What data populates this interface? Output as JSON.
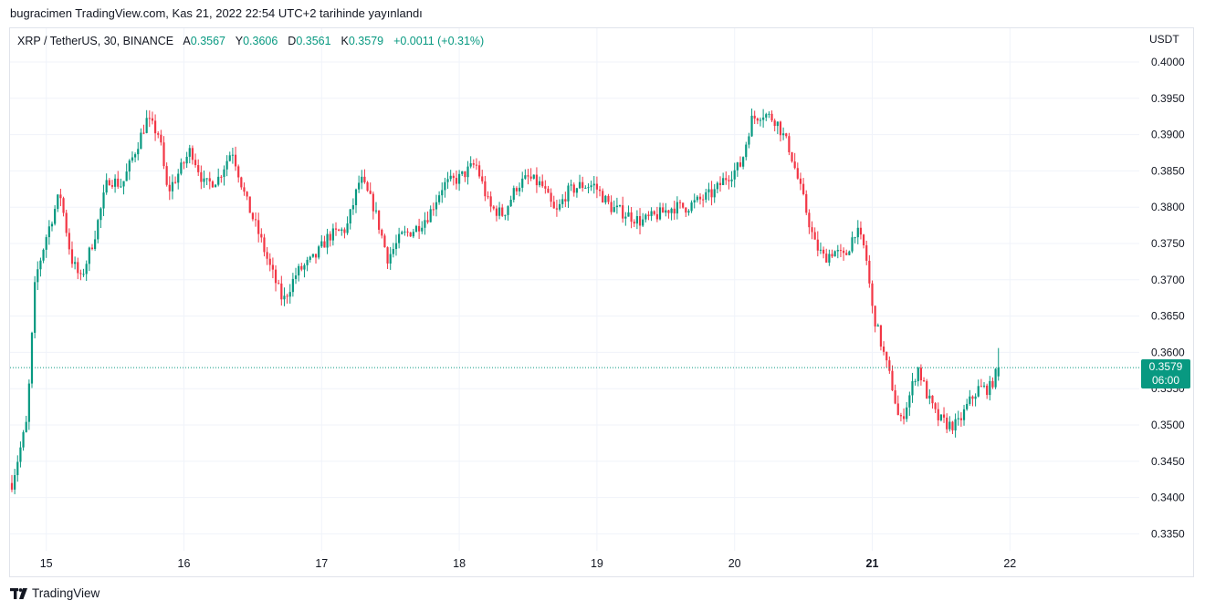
{
  "published_line": "bugracimen TradingView.com, Kas 21, 2022 22:54 UTC+2 tarihinde yayınlandı",
  "legend": {
    "symbol": "XRP / TetherUS, 30, BINANCE",
    "open_label": "A",
    "open_value": "0.3567",
    "high_label": "Y",
    "high_value": "0.3606",
    "low_label": "D",
    "low_value": "0.3561",
    "close_label": "K",
    "close_value": "0.3579",
    "change": "+0.0011 (+0.31%)"
  },
  "currency": "USDT",
  "price_badge": {
    "price": "0.3579",
    "countdown": "06:00"
  },
  "footer": {
    "brand": "TradingView"
  },
  "colors": {
    "up": "#089981",
    "down": "#f23645",
    "grid": "#f0f3fa",
    "axis_text": "#131722"
  },
  "chart_data": {
    "type": "candlestick",
    "title": "XRP / TetherUS, 30, BINANCE",
    "ylabel": "USDT",
    "ylim": [
      0.3308,
      0.4042
    ],
    "y_ticks": [
      "0.4000",
      "0.3950",
      "0.3900",
      "0.3850",
      "0.3800",
      "0.3750",
      "0.3700",
      "0.3650",
      "0.3600",
      "0.3550",
      "0.3500",
      "0.3450",
      "0.3400",
      "0.3350"
    ],
    "x_ticks": [
      "15",
      "16",
      "17",
      "18",
      "19",
      "20",
      "21",
      "22"
    ],
    "bold_x_tick": "21",
    "last_price": 0.3579,
    "series": [
      {
        "name": "XRP / TetherUS",
        "interval": "30",
        "day_of_first_bar": 14.75,
        "bars_per_day": 48,
        "close_path_keypoints": [
          [
            14.75,
            0.342
          ],
          [
            14.86,
            0.3505
          ],
          [
            14.92,
            0.37
          ],
          [
            15.0,
            0.376
          ],
          [
            15.1,
            0.382
          ],
          [
            15.18,
            0.373
          ],
          [
            15.25,
            0.37
          ],
          [
            15.35,
            0.376
          ],
          [
            15.45,
            0.384
          ],
          [
            15.55,
            0.383
          ],
          [
            15.65,
            0.388
          ],
          [
            15.73,
            0.392
          ],
          [
            15.82,
            0.39
          ],
          [
            15.88,
            0.382
          ],
          [
            15.97,
            0.385
          ],
          [
            16.05,
            0.388
          ],
          [
            16.15,
            0.383
          ],
          [
            16.25,
            0.384
          ],
          [
            16.35,
            0.388
          ],
          [
            16.45,
            0.381
          ],
          [
            16.55,
            0.376
          ],
          [
            16.62,
            0.372
          ],
          [
            16.72,
            0.367
          ],
          [
            16.82,
            0.371
          ],
          [
            16.95,
            0.373
          ],
          [
            17.05,
            0.376
          ],
          [
            17.18,
            0.377
          ],
          [
            17.28,
            0.384
          ],
          [
            17.38,
            0.38
          ],
          [
            17.48,
            0.373
          ],
          [
            17.58,
            0.376
          ],
          [
            17.68,
            0.377
          ],
          [
            17.78,
            0.379
          ],
          [
            17.88,
            0.383
          ],
          [
            18.0,
            0.384
          ],
          [
            18.12,
            0.386
          ],
          [
            18.22,
            0.38
          ],
          [
            18.32,
            0.379
          ],
          [
            18.42,
            0.383
          ],
          [
            18.5,
            0.384
          ],
          [
            18.6,
            0.383
          ],
          [
            18.7,
            0.379
          ],
          [
            18.78,
            0.382
          ],
          [
            18.88,
            0.383
          ],
          [
            18.98,
            0.383
          ],
          [
            19.1,
            0.38
          ],
          [
            19.22,
            0.379
          ],
          [
            19.32,
            0.378
          ],
          [
            19.45,
            0.379
          ],
          [
            19.55,
            0.38
          ],
          [
            19.65,
            0.38
          ],
          [
            19.75,
            0.381
          ],
          [
            19.85,
            0.382
          ],
          [
            19.93,
            0.384
          ],
          [
            20.0,
            0.385
          ],
          [
            20.05,
            0.386
          ],
          [
            20.12,
            0.392
          ],
          [
            20.2,
            0.393
          ],
          [
            20.3,
            0.392
          ],
          [
            20.4,
            0.388
          ],
          [
            20.5,
            0.381
          ],
          [
            20.58,
            0.375
          ],
          [
            20.65,
            0.373
          ],
          [
            20.72,
            0.374
          ],
          [
            20.8,
            0.373
          ],
          [
            20.88,
            0.377
          ],
          [
            20.95,
            0.374
          ],
          [
            21.0,
            0.366
          ],
          [
            21.08,
            0.36
          ],
          [
            21.15,
            0.355
          ],
          [
            21.2,
            0.35
          ],
          [
            21.27,
            0.354
          ],
          [
            21.33,
            0.358
          ],
          [
            21.4,
            0.354
          ],
          [
            21.47,
            0.351
          ],
          [
            21.55,
            0.35
          ],
          [
            21.62,
            0.35
          ],
          [
            21.7,
            0.353
          ],
          [
            21.77,
            0.355
          ],
          [
            21.85,
            0.355
          ],
          [
            21.92,
            0.3579
          ]
        ]
      }
    ]
  }
}
